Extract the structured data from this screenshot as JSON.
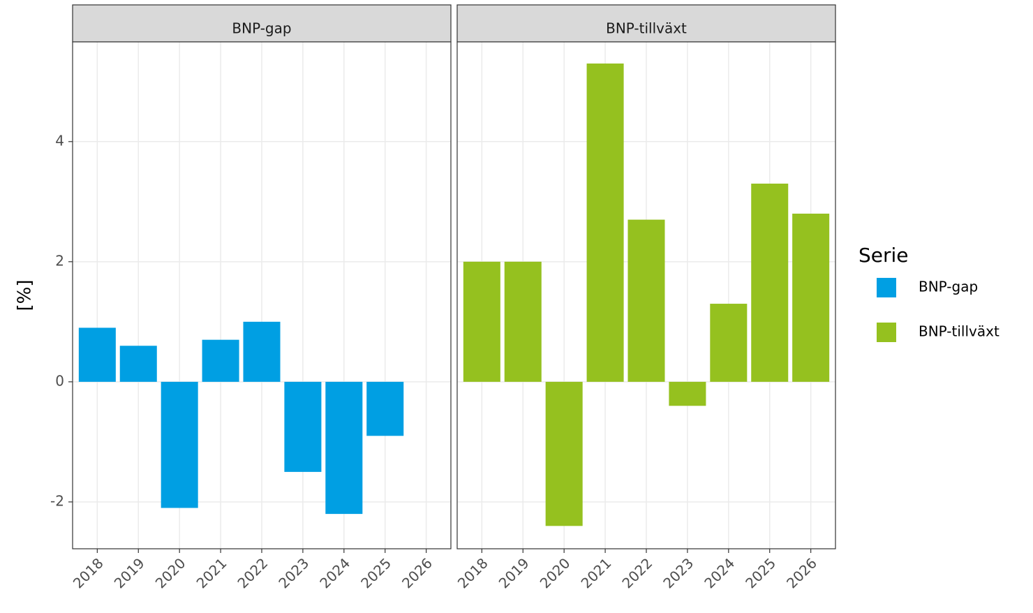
{
  "chart_data": {
    "type": "bar",
    "facet": true,
    "ylabel": "[%]",
    "legend_title": "Serie",
    "categories": [
      "2018",
      "2019",
      "2020",
      "2021",
      "2022",
      "2023",
      "2024",
      "2025",
      "2026"
    ],
    "series": [
      {
        "name": "BNP-gap",
        "color": "#009fe3",
        "values": [
          0.9,
          0.6,
          -2.1,
          0.7,
          1.0,
          -1.5,
          -2.2,
          -0.9,
          null
        ]
      },
      {
        "name": "BNP-tillväxt",
        "color": "#95c11f",
        "values": [
          2.0,
          2.0,
          -2.4,
          5.3,
          2.7,
          -0.4,
          1.3,
          3.3,
          2.8
        ]
      }
    ],
    "ylim": [
      -2.78,
      5.66
    ],
    "yticks": [
      -2,
      0,
      2,
      4
    ],
    "grid": true
  }
}
